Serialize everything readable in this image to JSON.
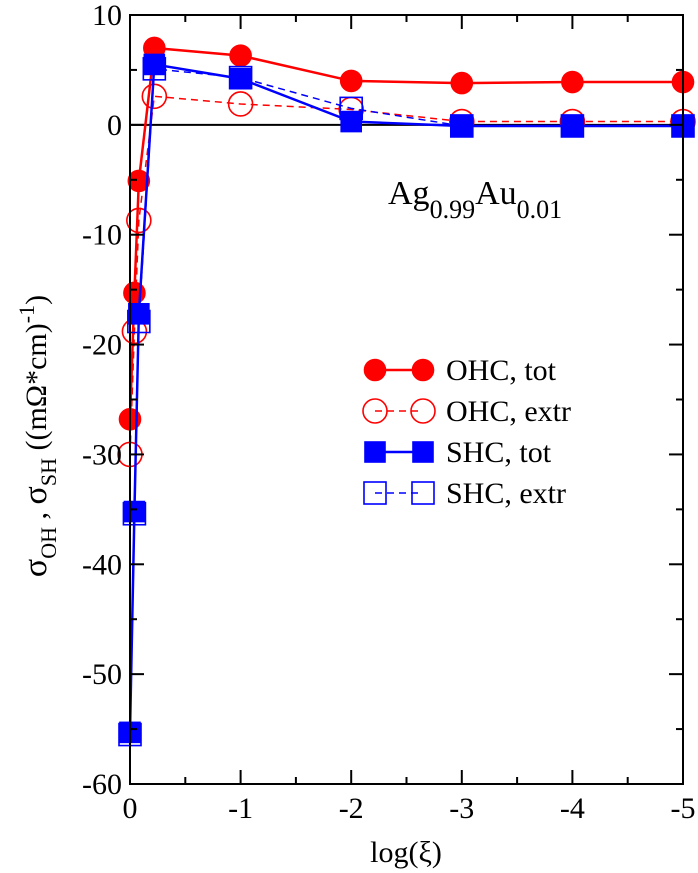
{
  "chart_data": {
    "type": "line",
    "title": "",
    "annotation": {
      "base1": "Ag",
      "sub1": "0.99",
      "base2": "Au",
      "sub2": "0.01"
    },
    "xlabel": "log(ξ)",
    "ylabel": {
      "s1": "σ",
      "sub1": "OH",
      "sep": " , ",
      "s2": "σ",
      "sub2": "SH",
      "units": "  ((mΩ*cm)",
      "sup": "-1",
      "close": ")"
    },
    "xlim": [
      0,
      -5
    ],
    "ylim": [
      -60,
      10
    ],
    "xticks": [
      0,
      -1,
      -2,
      -3,
      -4,
      -5
    ],
    "xtick_labels": [
      "0",
      "-1",
      "-2",
      "-3",
      "-4",
      "-5"
    ],
    "yticks": [
      -60,
      -50,
      -40,
      -30,
      -20,
      -10,
      0,
      10
    ],
    "ytick_labels": [
      "-60",
      "-50",
      "-40",
      "-30",
      "-20",
      "-10",
      "0",
      "10"
    ],
    "zero_line": true,
    "legend_position": "center-right",
    "series": [
      {
        "name": "OHC, tot",
        "color": "#ff0000",
        "marker": "circle",
        "filled": true,
        "dashed": false,
        "x": [
          0,
          -0.04,
          -0.08,
          -0.22,
          -1,
          -2,
          -3,
          -4,
          -5
        ],
        "y": [
          -26.8,
          -15.3,
          -5.1,
          7.0,
          6.3,
          4.0,
          3.8,
          3.9,
          3.9
        ]
      },
      {
        "name": "OHC, extr",
        "color": "#ff0000",
        "marker": "circle",
        "filled": false,
        "dashed": true,
        "x": [
          0,
          -0.04,
          -0.08,
          -0.22,
          -1,
          -2,
          -3,
          -4,
          -5
        ],
        "y": [
          -30.0,
          -18.8,
          -8.7,
          2.6,
          1.9,
          1.4,
          0.3,
          0.3,
          0.3
        ]
      },
      {
        "name": "SHC, tot",
        "color": "#0000ff",
        "marker": "square",
        "filled": true,
        "dashed": false,
        "x": [
          0,
          -0.04,
          -0.08,
          -0.22,
          -1,
          -2,
          -3,
          -4,
          -5
        ],
        "y": [
          -55.3,
          -35.2,
          -17.2,
          5.5,
          4.2,
          0.3,
          -0.1,
          -0.1,
          -0.1
        ]
      },
      {
        "name": "SHC, extr",
        "color": "#0000ff",
        "marker": "square",
        "filled": false,
        "dashed": true,
        "x": [
          0,
          -0.04,
          -0.08,
          -0.22,
          -1,
          -2,
          -3,
          -4,
          -5
        ],
        "y": [
          -55.5,
          -35.4,
          -17.9,
          5.1,
          4.3,
          1.5,
          -0.1,
          -0.1,
          -0.1
        ]
      }
    ]
  }
}
